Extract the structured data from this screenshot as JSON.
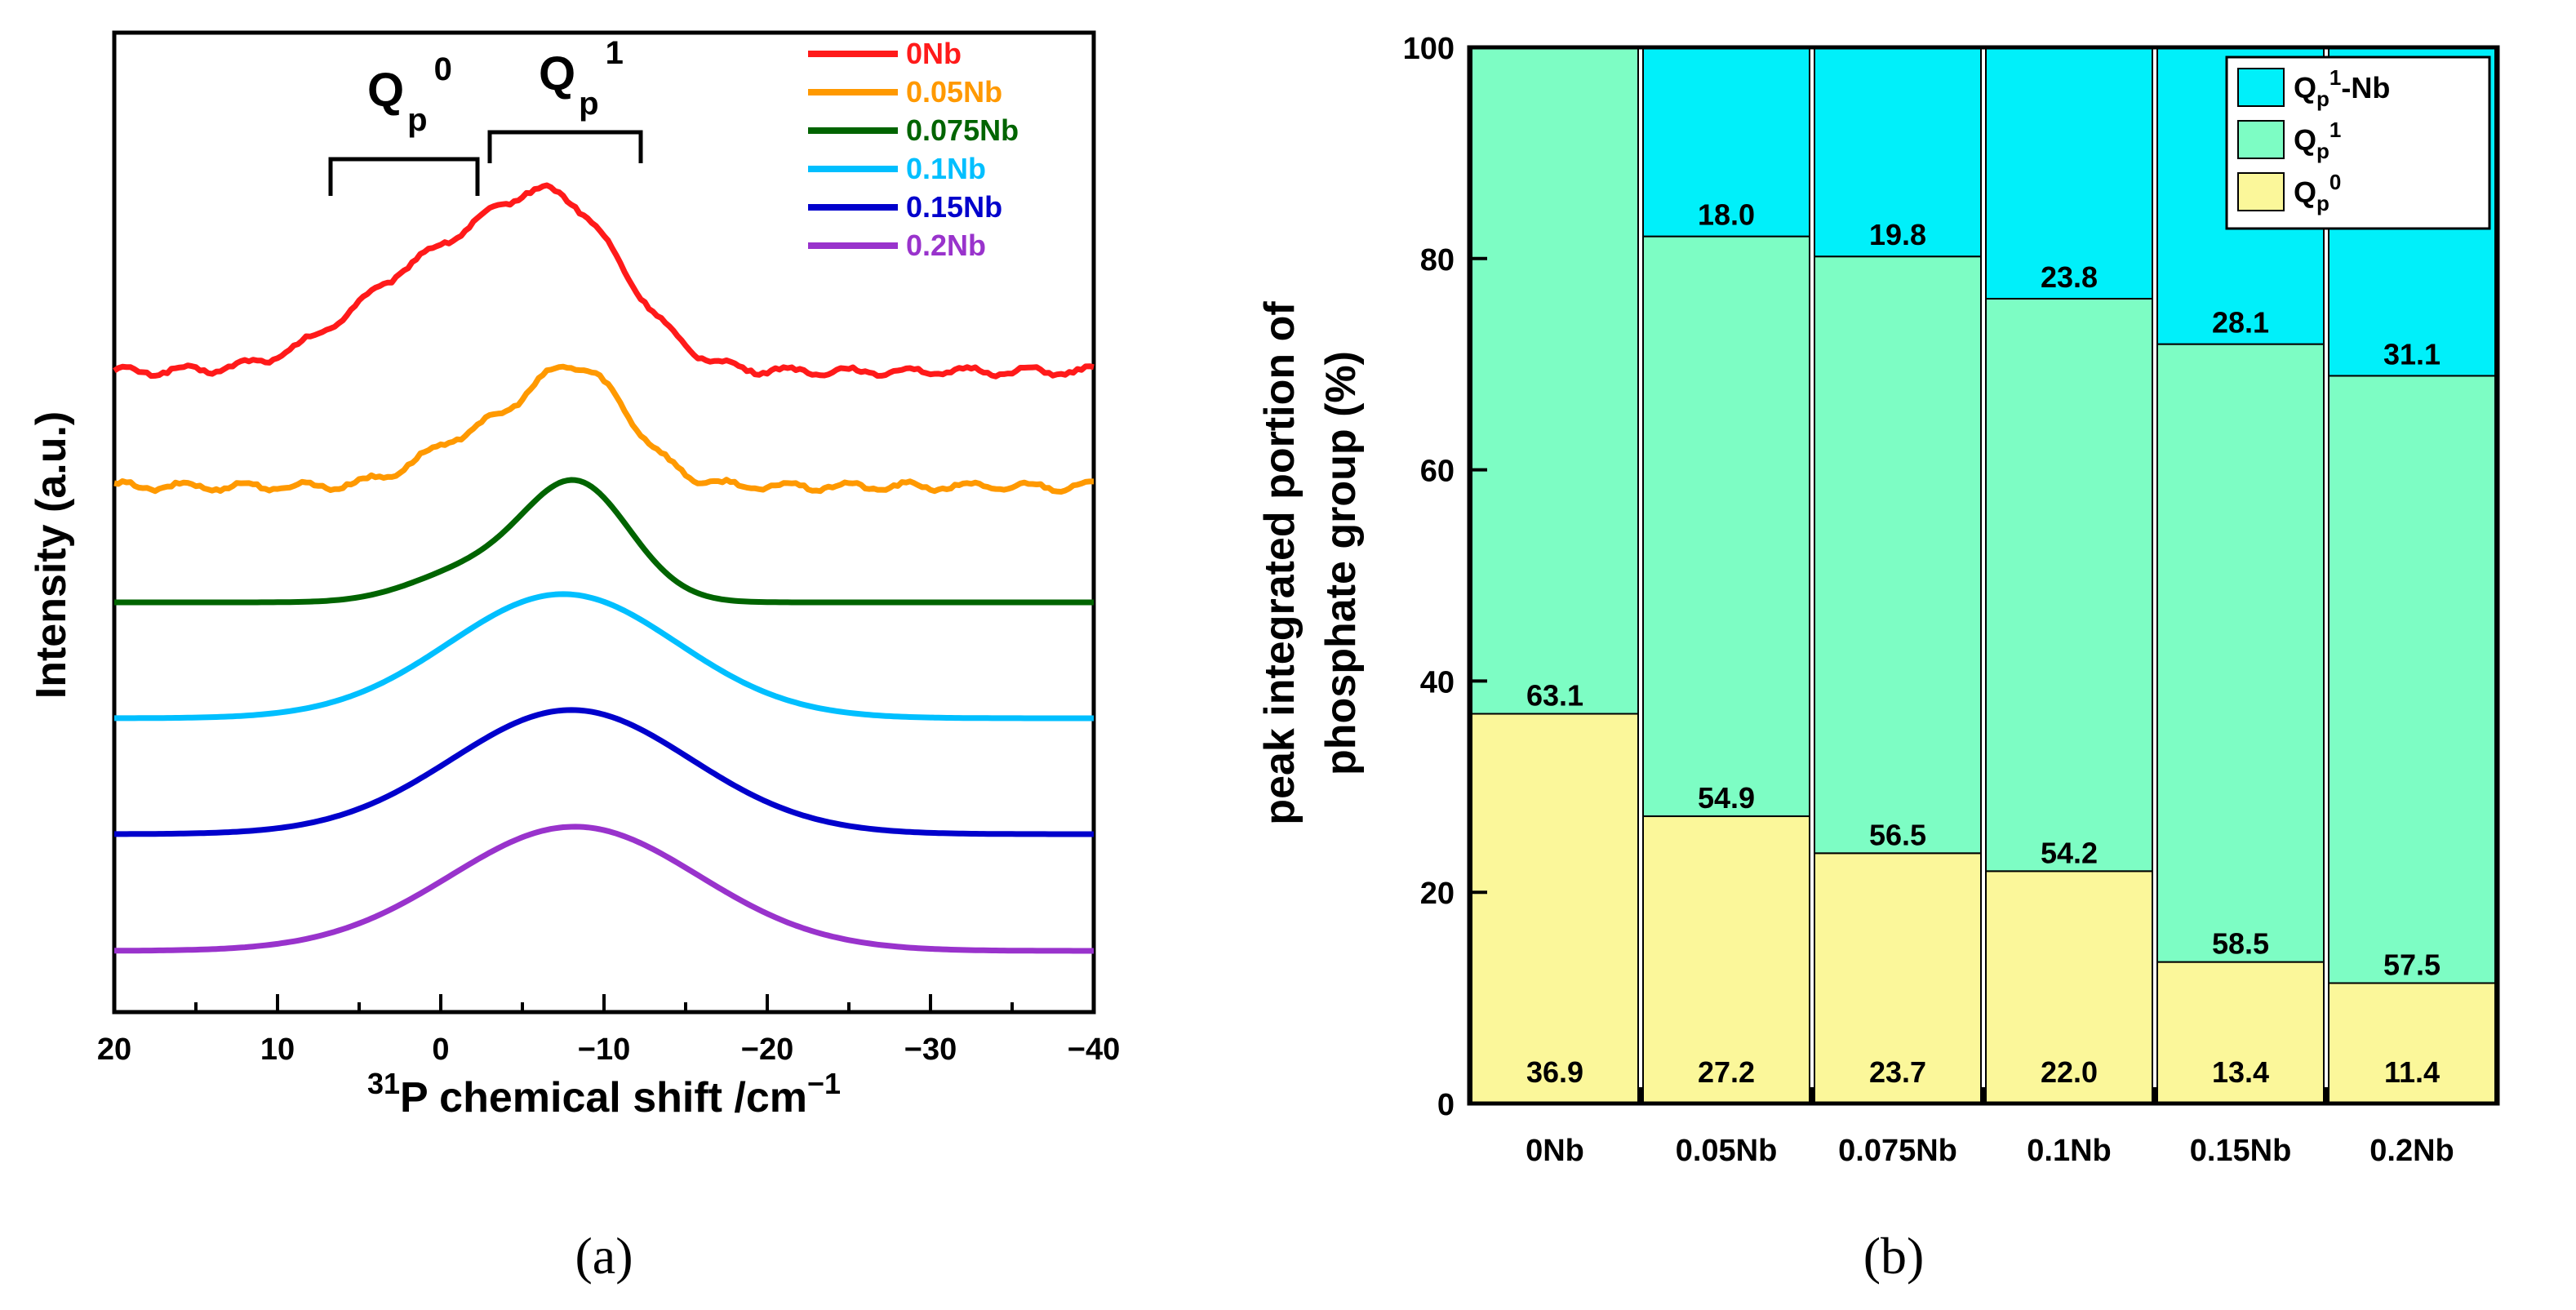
{
  "chart_data": [
    {
      "panel": "a",
      "type": "line",
      "xlabel": "P chemical shift /cm",
      "xlabel_sup_pre": "31",
      "xlabel_sup_post": "−1",
      "ylabel": "Intensity (a.u.)",
      "xlim": [
        20,
        -40
      ],
      "xticks": [
        {
          "v": 20,
          "label": "20"
        },
        {
          "v": 10,
          "label": "10"
        },
        {
          "v": 0,
          "label": "0"
        },
        {
          "v": -10,
          "label": "−10"
        },
        {
          "v": -20,
          "label": "−20"
        },
        {
          "v": -30,
          "label": "−30"
        },
        {
          "v": -40,
          "label": "−40"
        }
      ],
      "annotations": {
        "q0": {
          "main": "Q",
          "sub": "p",
          "sup": "0"
        },
        "q1": {
          "main": "Q",
          "sub": "p",
          "sup": "1"
        }
      },
      "series": [
        {
          "name": "0Nb",
          "color": "#ff1a1a",
          "offset": 5,
          "peaks": [
            [
              0.4,
              1.6,
              5.0
            ],
            [
              -7.5,
              2.3,
              4.0
            ]
          ]
        },
        {
          "name": "0.05Nb",
          "color": "#ff9900",
          "offset": 4,
          "peaks": [
            [
              -1.5,
              0.65,
              3.0
            ],
            [
              -8.3,
              1.85,
              3.2
            ]
          ]
        },
        {
          "name": "0.075Nb",
          "color": "#006400",
          "offset": 3,
          "peaks": [
            [
              -1.5,
              0.45,
              3.5
            ],
            [
              -8.3,
              1.85,
              3.3
            ]
          ]
        },
        {
          "name": "0.1Nb",
          "color": "#00bfff",
          "offset": 2,
          "peaks": [
            [
              -7.5,
              1.95,
              7.0
            ]
          ]
        },
        {
          "name": "0.15Nb",
          "color": "#0000cc",
          "offset": 1,
          "peaks": [
            [
              -8.0,
              1.95,
              7.3
            ]
          ]
        },
        {
          "name": "0.2Nb",
          "color": "#9933cc",
          "offset": 0,
          "peaks": [
            [
              -8.2,
              1.95,
              7.6
            ]
          ]
        }
      ]
    },
    {
      "panel": "b",
      "type": "bar",
      "stacked": true,
      "ylabel_line1": "peak integrated portion of",
      "ylabel_line2": "phosphate group (%)",
      "ylim": [
        0,
        100
      ],
      "yticks": [
        "0",
        "20",
        "40",
        "60",
        "80",
        "100"
      ],
      "categories": [
        "0Nb",
        "0.05Nb",
        "0.075Nb",
        "0.1Nb",
        "0.15Nb",
        "0.2Nb"
      ],
      "series": [
        {
          "name": "Qp0",
          "color": "#fbf79a",
          "values": [
            36.9,
            27.2,
            23.7,
            22.0,
            13.4,
            11.4
          ],
          "labels": [
            "36.9",
            "27.2",
            "23.7",
            "22.0",
            "13.4",
            "11.4"
          ]
        },
        {
          "name": "Qp1",
          "color": "#7dfdc4",
          "values": [
            63.1,
            54.9,
            56.5,
            54.2,
            58.5,
            57.5
          ],
          "labels": [
            "63.1",
            "54.9",
            "56.5",
            "54.2",
            "58.5",
            "57.5"
          ]
        },
        {
          "name": "Qp1-Nb",
          "color": "#00f0fa",
          "values": [
            0,
            18.0,
            19.8,
            23.8,
            28.1,
            31.1
          ],
          "labels": [
            "",
            "18.0",
            "19.8",
            "23.8",
            "28.1",
            "31.1"
          ]
        }
      ],
      "legend": [
        {
          "main": "Q",
          "sub": "p",
          "sup": "1",
          "suffix": "-Nb",
          "color": "#00f0fa"
        },
        {
          "main": "Q",
          "sub": "p",
          "sup": "1",
          "suffix": "",
          "color": "#7dfdc4"
        },
        {
          "main": "Q",
          "sub": "p",
          "sup": "0",
          "suffix": "",
          "color": "#fbf79a"
        }
      ]
    }
  ],
  "panel_labels": {
    "a": "(a)",
    "b": "(b)"
  }
}
